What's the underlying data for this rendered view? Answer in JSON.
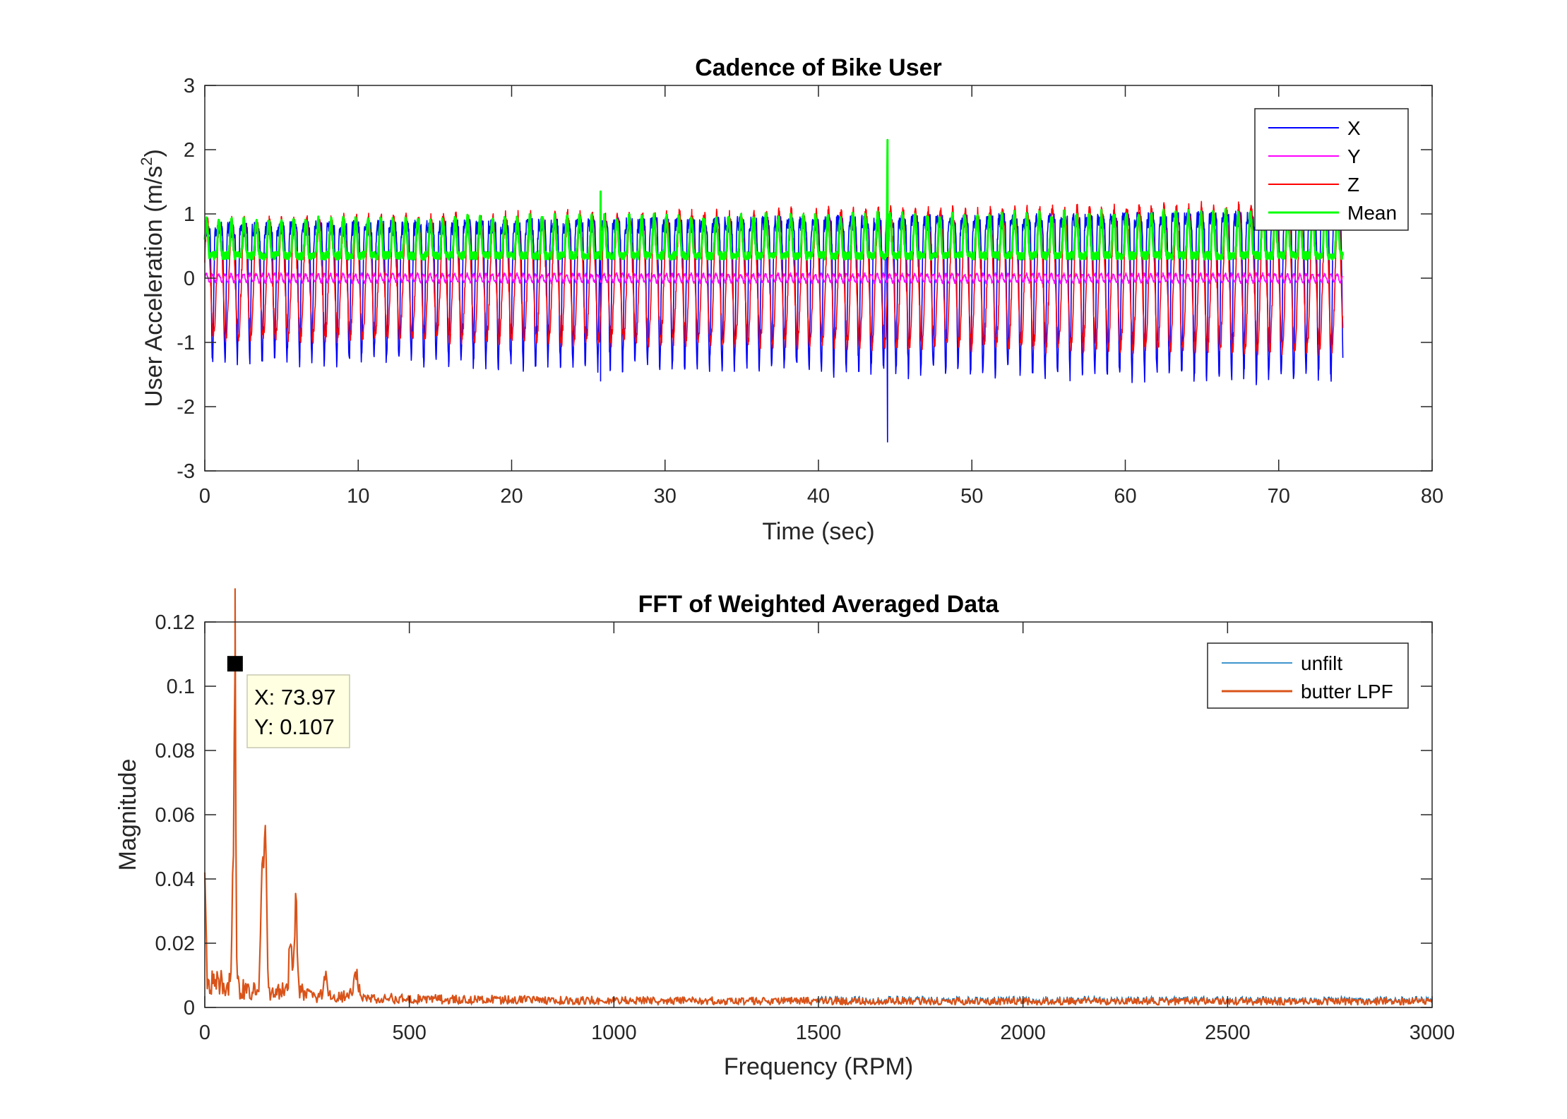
{
  "colors": {
    "x": "#0000ff",
    "y": "#ff00ff",
    "z": "#ff0000",
    "mean": "#00ff00",
    "unfilt": "#0072bd",
    "butter": "#d95319",
    "axis": "#262626",
    "datatip_bg": "#ffffe1"
  },
  "chart_data": [
    {
      "type": "line",
      "title": "Cadence of Bike User",
      "xlabel": "Time (sec)",
      "ylabel_main": "User Acceleration (m/s",
      "ylabel_sup": "2",
      "ylabel_end": ")",
      "xlim": [
        0,
        80
      ],
      "ylim": [
        -3,
        3
      ],
      "xticks": [
        0,
        10,
        20,
        30,
        40,
        50,
        60,
        70,
        80
      ],
      "yticks": [
        -3,
        -2,
        -1,
        0,
        1,
        2,
        3
      ],
      "legend_position": "top-right",
      "grid": false,
      "x_end": 74.2,
      "cycle_period_sec": 0.81,
      "series": [
        {
          "name": "X",
          "color_key": "x",
          "typical_range": [
            -1.3,
            0.9
          ]
        },
        {
          "name": "Y",
          "color_key": "y",
          "typical_range": [
            -0.08,
            0.08
          ]
        },
        {
          "name": "Z",
          "color_key": "z",
          "typical_range": [
            -1.0,
            1.0
          ]
        },
        {
          "name": "Mean",
          "color_key": "mean",
          "typical_range": [
            0.0,
            1.5
          ]
        }
      ],
      "events": [
        {
          "x": 25.8,
          "series": "Mean",
          "y": 1.35
        },
        {
          "x": 25.8,
          "series": "X",
          "y": -1.6
        },
        {
          "x": 44.5,
          "series": "Mean",
          "y": 2.15
        },
        {
          "x": 44.5,
          "series": "X",
          "y": -2.55
        }
      ]
    },
    {
      "type": "line",
      "title": "FFT of Weighted Averaged Data",
      "xlabel": "Frequency (RPM)",
      "ylabel": "Magnitude",
      "xlim": [
        0,
        3000
      ],
      "ylim": [
        0,
        0.12
      ],
      "xticks": [
        0,
        500,
        1000,
        1500,
        2000,
        2500,
        3000
      ],
      "yticks": [
        "0",
        "0.02",
        "0.04",
        "0.06",
        "0.08",
        "0.1",
        "0.12"
      ],
      "legend_position": "top-right",
      "grid": false,
      "series": [
        {
          "name": "unfilt",
          "color_key": "unfilt"
        },
        {
          "name": "butter LPF",
          "color_key": "butter"
        }
      ],
      "peaks": [
        {
          "x": 0,
          "y": 0.042
        },
        {
          "x": 70,
          "y": 0.039
        },
        {
          "x": 73.97,
          "y": 0.107
        },
        {
          "x": 140,
          "y": 0.038
        },
        {
          "x": 148,
          "y": 0.048
        },
        {
          "x": 210,
          "y": 0.023
        },
        {
          "x": 222,
          "y": 0.033
        },
        {
          "x": 295,
          "y": 0.006
        },
        {
          "x": 370,
          "y": 0.007
        }
      ],
      "datatip": {
        "x": 73.97,
        "y": 0.107,
        "x_text": "X: 73.97",
        "y_text": "Y: 0.107"
      }
    }
  ]
}
